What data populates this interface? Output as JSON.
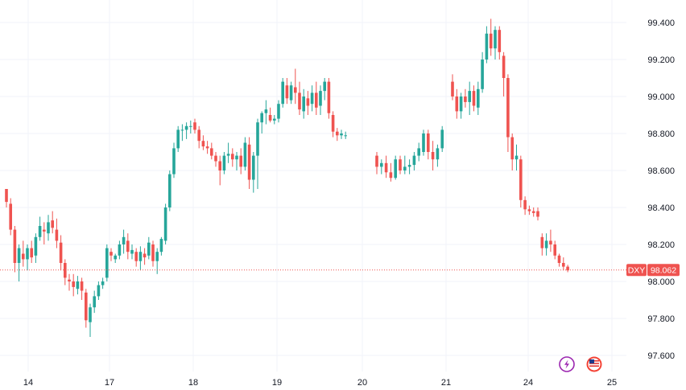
{
  "chart_data": {
    "type": "candlestick",
    "symbol": "DXY",
    "last_price": "98.062",
    "ylim": [
      97.5,
      99.45
    ],
    "y_ticks": [
      "99.400",
      "99.200",
      "99.000",
      "98.800",
      "98.600",
      "98.400",
      "98.200",
      "98.000",
      "97.800",
      "97.600"
    ],
    "x_ticks": [
      "14",
      "17",
      "18",
      "19",
      "20",
      "21",
      "24",
      "25"
    ],
    "grid": true,
    "colors": {
      "up": "#26a69a",
      "down": "#ef5350",
      "last_line": "#ef5350",
      "grid": "#f0f3fa"
    },
    "candles": [
      [
        98.5,
        98.5,
        98.4,
        98.43
      ],
      [
        98.42,
        98.45,
        98.25,
        98.28
      ],
      [
        98.28,
        98.3,
        98.05,
        98.1
      ],
      [
        98.1,
        98.2,
        98.0,
        98.18
      ],
      [
        98.15,
        98.22,
        98.08,
        98.12
      ],
      [
        98.12,
        98.2,
        98.06,
        98.18
      ],
      [
        98.18,
        98.22,
        98.1,
        98.13
      ],
      [
        98.14,
        98.26,
        98.1,
        98.24
      ],
      [
        98.24,
        98.35,
        98.22,
        98.3
      ],
      [
        98.28,
        98.32,
        98.2,
        98.27
      ],
      [
        98.26,
        98.36,
        98.22,
        98.32
      ],
      [
        98.33,
        98.38,
        98.26,
        98.29
      ],
      [
        98.28,
        98.34,
        98.18,
        98.22
      ],
      [
        98.21,
        98.25,
        98.06,
        98.1
      ],
      [
        98.1,
        98.12,
        97.98,
        98.02
      ],
      [
        98.01,
        98.04,
        97.95,
        98.0
      ],
      [
        98.0,
        98.04,
        97.92,
        97.97
      ],
      [
        97.96,
        98.03,
        97.93,
        98.0
      ],
      [
        98.0,
        98.02,
        97.9,
        97.95
      ],
      [
        97.94,
        97.96,
        97.75,
        97.79
      ],
      [
        97.78,
        97.88,
        97.7,
        97.86
      ],
      [
        97.86,
        97.95,
        97.83,
        97.92
      ],
      [
        97.92,
        98.0,
        97.9,
        97.98
      ],
      [
        97.98,
        98.02,
        97.96,
        98.0
      ],
      [
        98.02,
        98.2,
        98.0,
        98.18
      ],
      [
        98.16,
        98.18,
        98.11,
        98.14
      ],
      [
        98.12,
        98.15,
        98.1,
        98.14
      ],
      [
        98.14,
        98.22,
        98.12,
        98.2
      ],
      [
        98.2,
        98.28,
        98.15,
        98.24
      ],
      [
        98.22,
        98.26,
        98.12,
        98.16
      ],
      [
        98.15,
        98.2,
        98.12,
        98.17
      ],
      [
        98.16,
        98.18,
        98.08,
        98.11
      ],
      [
        98.11,
        98.19,
        98.06,
        98.16
      ],
      [
        98.15,
        98.18,
        98.09,
        98.13
      ],
      [
        98.14,
        98.24,
        98.12,
        98.21
      ],
      [
        98.2,
        98.22,
        98.08,
        98.11
      ],
      [
        98.11,
        98.18,
        98.04,
        98.16
      ],
      [
        98.16,
        98.24,
        98.14,
        98.23
      ],
      [
        98.22,
        98.42,
        98.2,
        98.4
      ],
      [
        98.4,
        98.6,
        98.38,
        98.58
      ],
      [
        98.58,
        98.75,
        98.56,
        98.72
      ],
      [
        98.72,
        98.84,
        98.7,
        98.82
      ],
      [
        98.82,
        98.85,
        98.76,
        98.82
      ],
      [
        98.82,
        98.86,
        98.77,
        98.84
      ],
      [
        98.84,
        98.87,
        98.8,
        98.84
      ],
      [
        98.86,
        98.88,
        98.8,
        98.82
      ],
      [
        98.82,
        98.84,
        98.72,
        98.76
      ],
      [
        98.76,
        98.79,
        98.71,
        98.73
      ],
      [
        98.73,
        98.76,
        98.69,
        98.72
      ],
      [
        98.72,
        98.75,
        98.66,
        98.68
      ],
      [
        98.68,
        98.7,
        98.62,
        98.65
      ],
      [
        98.65,
        98.68,
        98.52,
        98.6
      ],
      [
        98.6,
        98.7,
        98.58,
        98.68
      ],
      [
        98.68,
        98.75,
        98.64,
        98.69
      ],
      [
        98.69,
        98.72,
        98.62,
        98.66
      ],
      [
        98.66,
        98.7,
        98.6,
        98.68
      ],
      [
        98.68,
        98.72,
        98.58,
        98.62
      ],
      [
        98.62,
        98.78,
        98.6,
        98.75
      ],
      [
        98.74,
        98.78,
        98.5,
        98.55
      ],
      [
        98.55,
        98.7,
        98.48,
        98.68
      ],
      [
        98.68,
        98.88,
        98.5,
        98.86
      ],
      [
        98.86,
        98.92,
        98.8,
        98.91
      ],
      [
        98.91,
        98.98,
        98.85,
        98.93
      ],
      [
        98.9,
        98.94,
        98.86,
        98.87
      ],
      [
        98.87,
        98.9,
        98.85,
        98.88
      ],
      [
        98.88,
        98.98,
        98.86,
        98.96
      ],
      [
        98.96,
        99.1,
        98.94,
        99.08
      ],
      [
        99.06,
        99.1,
        98.96,
        98.99
      ],
      [
        98.98,
        99.08,
        98.96,
        99.06
      ],
      [
        99.05,
        99.15,
        98.96,
        99.02
      ],
      [
        99.02,
        99.08,
        98.9,
        98.93
      ],
      [
        98.92,
        99.04,
        98.88,
        99.0
      ],
      [
        98.99,
        99.03,
        98.9,
        98.95
      ],
      [
        98.96,
        99.06,
        98.92,
        99.02
      ],
      [
        99.02,
        99.08,
        98.9,
        98.94
      ],
      [
        98.95,
        99.06,
        98.9,
        99.03
      ],
      [
        99.03,
        99.1,
        98.98,
        99.08
      ],
      [
        99.08,
        99.1,
        98.88,
        98.91
      ],
      [
        98.9,
        98.92,
        98.78,
        98.81
      ],
      [
        98.81,
        98.83,
        98.76,
        98.79
      ],
      [
        98.79,
        98.82,
        98.77,
        98.8
      ],
      [
        98.79,
        98.81,
        98.77,
        98.79
      ],
      [
        98.68,
        98.7,
        98.58,
        98.62
      ],
      [
        98.62,
        98.66,
        98.58,
        98.64
      ],
      [
        98.64,
        98.68,
        98.56,
        98.59
      ],
      [
        98.59,
        98.64,
        98.54,
        98.56
      ],
      [
        98.56,
        98.68,
        98.55,
        98.66
      ],
      [
        98.66,
        98.68,
        98.58,
        98.6
      ],
      [
        98.6,
        98.68,
        98.58,
        98.62
      ],
      [
        98.62,
        98.66,
        98.58,
        98.63
      ],
      [
        98.63,
        98.7,
        98.6,
        98.68
      ],
      [
        98.68,
        98.75,
        98.65,
        98.72
      ],
      [
        98.7,
        98.82,
        98.68,
        98.8
      ],
      [
        98.8,
        98.82,
        98.66,
        98.7
      ],
      [
        98.7,
        98.76,
        98.6,
        98.66
      ],
      [
        98.66,
        98.74,
        98.62,
        98.72
      ],
      [
        98.72,
        98.84,
        98.7,
        98.82
      ],
      [
        99.08,
        99.12,
        98.98,
        99.0
      ],
      [
        99.0,
        99.04,
        98.88,
        98.92
      ],
      [
        98.92,
        99.02,
        98.88,
        99.0
      ],
      [
        99.0,
        99.04,
        98.94,
        98.97
      ],
      [
        98.97,
        99.08,
        98.9,
        99.03
      ],
      [
        99.03,
        99.06,
        98.92,
        98.95
      ],
      [
        98.94,
        99.08,
        98.9,
        99.04
      ],
      [
        99.04,
        99.24,
        99.02,
        99.2
      ],
      [
        99.2,
        99.38,
        99.18,
        99.34
      ],
      [
        99.34,
        99.42,
        99.22,
        99.26
      ],
      [
        99.26,
        99.38,
        99.2,
        99.36
      ],
      [
        99.36,
        99.38,
        99.2,
        99.24
      ],
      [
        99.22,
        99.24,
        99.0,
        99.1
      ],
      [
        99.1,
        99.12,
        98.7,
        98.78
      ],
      [
        98.78,
        98.8,
        98.6,
        98.66
      ],
      [
        98.66,
        98.74,
        98.6,
        98.68
      ],
      [
        98.66,
        98.68,
        98.4,
        98.44
      ],
      [
        98.44,
        98.46,
        98.36,
        98.39
      ],
      [
        98.39,
        98.41,
        98.36,
        98.38
      ],
      [
        98.38,
        98.4,
        98.35,
        98.37
      ],
      [
        98.38,
        98.4,
        98.33,
        98.35
      ],
      [
        98.24,
        98.26,
        98.14,
        98.18
      ],
      [
        98.18,
        98.26,
        98.14,
        98.22
      ],
      [
        98.22,
        98.28,
        98.16,
        98.2
      ],
      [
        98.2,
        98.22,
        98.12,
        98.14
      ],
      [
        98.14,
        98.15,
        98.08,
        98.1
      ],
      [
        98.1,
        98.13,
        98.06,
        98.08
      ],
      [
        98.08,
        98.09,
        98.05,
        98.06
      ]
    ]
  },
  "icons": {
    "left": "lightning-icon",
    "right": "us-flag-icon"
  }
}
